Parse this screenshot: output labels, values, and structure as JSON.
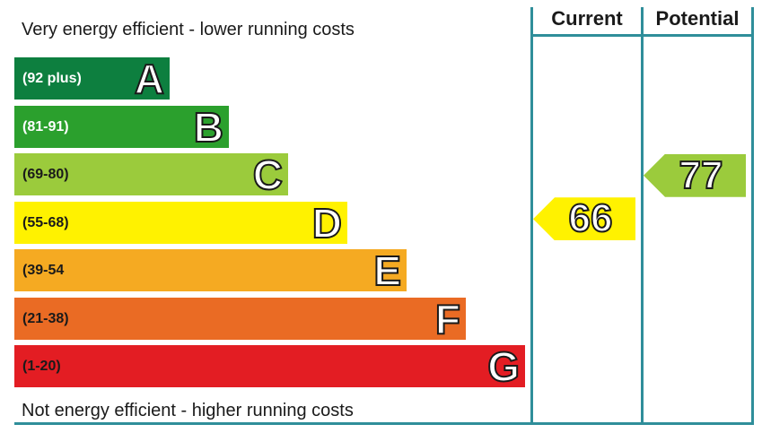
{
  "chart_data": {
    "type": "bar",
    "top_caption": "Very energy efficient - lower running costs",
    "bottom_caption": "Not energy efficient - higher running costs",
    "bands": [
      {
        "letter": "A",
        "range": "(92 plus)",
        "color": "#0d7f3f",
        "range_color": "#ffffff",
        "level": 1
      },
      {
        "letter": "B",
        "range": "(81-91)",
        "color": "#2ba02d",
        "range_color": "#ffffff",
        "level": 2
      },
      {
        "letter": "C",
        "range": "(69-80)",
        "color": "#9bcb3c",
        "range_color": "#1a1a1a",
        "level": 3
      },
      {
        "letter": "D",
        "range": "(55-68)",
        "color": "#fff200",
        "range_color": "#1a1a1a",
        "level": 4
      },
      {
        "letter": "E",
        "range": "(39-54",
        "color": "#f5aa22",
        "range_color": "#1a1a1a",
        "level": 5
      },
      {
        "letter": "F",
        "range": "(21-38)",
        "color": "#ea6b24",
        "range_color": "#1a1a1a",
        "level": 6
      },
      {
        "letter": "G",
        "range": "(1-20)",
        "color": "#e31d23",
        "range_color": "#1a1a1a",
        "level": 7
      }
    ],
    "columns": [
      {
        "label": "Current",
        "value": 66,
        "color": "#fff200"
      },
      {
        "label": "Potential",
        "value": 77,
        "color": "#9bcb3c"
      }
    ]
  }
}
